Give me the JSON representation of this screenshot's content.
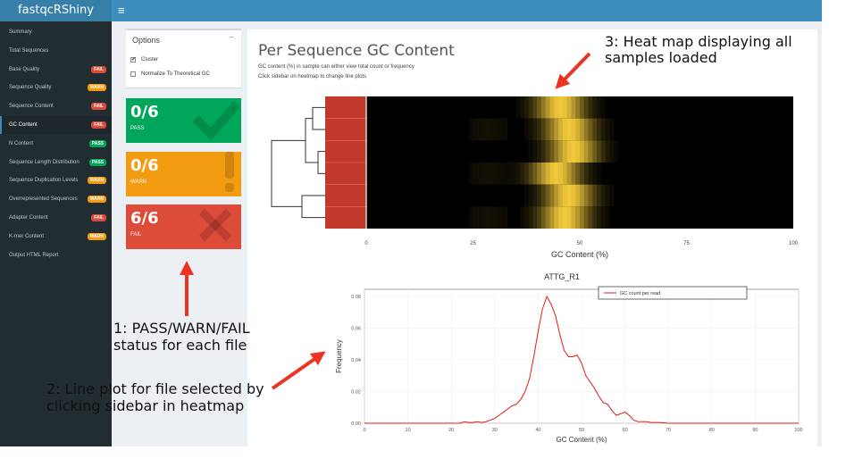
{
  "app": {
    "title": "fastqcRShiny",
    "menu_icon": "hamburger-icon"
  },
  "sidebar": {
    "items": [
      {
        "label": "Summary",
        "badge": ""
      },
      {
        "label": "Total Sequences",
        "badge": ""
      },
      {
        "label": "Base Quality",
        "badge": "FAIL"
      },
      {
        "label": "Sequence Quality",
        "badge": "WARN"
      },
      {
        "label": "Sequence Content",
        "badge": "FAIL"
      },
      {
        "label": "GC Content",
        "badge": "FAIL"
      },
      {
        "label": "N Content",
        "badge": "PASS"
      },
      {
        "label": "Sequence Length Distribution",
        "badge": "PASS"
      },
      {
        "label": "Sequence Duplication Levels",
        "badge": "WARN"
      },
      {
        "label": "Overrepresented Sequences",
        "badge": "WARN"
      },
      {
        "label": "Adapter Content",
        "badge": "FAIL"
      },
      {
        "label": "K-mer Content",
        "badge": "WARN"
      },
      {
        "label": "Output HTML Report",
        "badge": ""
      }
    ],
    "active_index": 5,
    "badge_colors": {
      "PASS": "#00a65a",
      "WARN": "#f39c12",
      "FAIL": "#dd4b39"
    }
  },
  "options": {
    "title": "Options",
    "collapse": "−",
    "cluster_label": "Cluster",
    "cluster_checked": true,
    "normalize_label": "Normalize To Theoretical GC",
    "normalize_checked": false
  },
  "status": {
    "pass": {
      "count": "0/6",
      "label": "PASS",
      "color": "#00a65a",
      "icon": "checkmark-icon"
    },
    "warn": {
      "count": "0/6",
      "label": "WARN",
      "color": "#f39c12",
      "icon": "exclamation-icon"
    },
    "fail": {
      "count": "6/6",
      "label": "FAIL",
      "color": "#dd4b39",
      "icon": "x-icon"
    }
  },
  "main": {
    "title": "Per Sequence GC Content",
    "desc1": "GC content (%) in sample can either view total count or frequency",
    "desc2": "Click sidebar on heatmap to change line plots"
  },
  "heatmap": {
    "x_ticks": [
      "0",
      "25",
      "50",
      "75",
      "100"
    ],
    "xlabel": "GC Content (%)",
    "sidebar_color": "#c0392b",
    "rows": 6
  },
  "chart_data": {
    "type": "line",
    "title": "ATTG_R1",
    "xlabel": "GC Content (%)",
    "ylabel": "Frequency",
    "xlim": [
      0,
      100
    ],
    "ylim": [
      0,
      0.08
    ],
    "x_ticks": [
      0,
      10,
      20,
      30,
      40,
      50,
      60,
      70,
      80,
      90,
      100
    ],
    "y_ticks": [
      "0.00",
      "0.02",
      "0.04",
      "0.06",
      "0.08"
    ],
    "legend": "top-right",
    "series": [
      {
        "name": "GC count per read",
        "color": "#e41a1c",
        "x": [
          0,
          5,
          10,
          15,
          20,
          21,
          22,
          23,
          24,
          25,
          26,
          27,
          28,
          29,
          30,
          31,
          32,
          33,
          34,
          35,
          36,
          37,
          38,
          39,
          40,
          41,
          42,
          43,
          44,
          45,
          46,
          47,
          48,
          49,
          50,
          51,
          52,
          53,
          54,
          55,
          56,
          57,
          58,
          59,
          60,
          61,
          62,
          63,
          64,
          65,
          66,
          67,
          68,
          70,
          75,
          80,
          90,
          100
        ],
        "values": [
          0.0,
          0.0,
          0.0,
          0.0,
          0.0,
          0.0,
          0.0,
          0.001,
          0.0005,
          0.0005,
          0.001,
          0.0005,
          0.001,
          0.002,
          0.003,
          0.005,
          0.007,
          0.009,
          0.011,
          0.012,
          0.015,
          0.02,
          0.028,
          0.042,
          0.058,
          0.072,
          0.08,
          0.075,
          0.068,
          0.056,
          0.046,
          0.042,
          0.042,
          0.043,
          0.038,
          0.03,
          0.026,
          0.022,
          0.017,
          0.013,
          0.012,
          0.008,
          0.005,
          0.006,
          0.007,
          0.005,
          0.002,
          0.001,
          0.001,
          0.001,
          0.0005,
          0.0005,
          0.0005,
          0.0,
          0.0,
          0.0,
          0.0,
          0.0
        ]
      }
    ]
  },
  "annotations": {
    "a1_line1": "1: PASS/WARN/FAIL",
    "a1_line2": "status for each file",
    "a2_line1": "2: Line plot for file selected by",
    "a2_line2": "clicking sidebar in heatmap",
    "a3_line1": "3: Heat map displaying all",
    "a3_line2": "samples loaded",
    "arrow_color": "#ee3322"
  }
}
